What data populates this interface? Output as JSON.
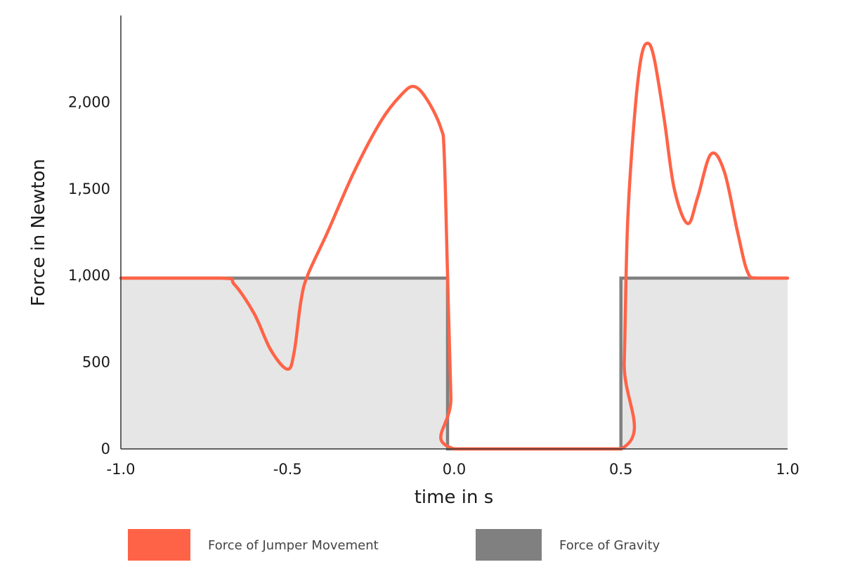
{
  "chart_data": {
    "type": "line",
    "xlabel": "time in s",
    "ylabel": "Force in Newton",
    "xlim": [
      -1.0,
      1.0
    ],
    "ylim": [
      0,
      2500
    ],
    "grid": false,
    "legend_position": "bottom",
    "x_ticks": [
      {
        "value": -1.0,
        "label": "-1.0"
      },
      {
        "value": -0.5,
        "label": "-0.5"
      },
      {
        "value": 0.0,
        "label": "0.0"
      },
      {
        "value": 0.5,
        "label": "0.5"
      },
      {
        "value": 1.0,
        "label": "1.0"
      }
    ],
    "y_ticks": [
      {
        "value": 0,
        "label": "0"
      },
      {
        "value": 500,
        "label": "500"
      },
      {
        "value": 1000,
        "label": "1,000"
      },
      {
        "value": 1500,
        "label": "1,500"
      },
      {
        "value": 2000,
        "label": "2,000"
      }
    ],
    "series": [
      {
        "name": "Force of Gravity",
        "color": "#808080",
        "fill": "#e6e6e6",
        "style": "area-step",
        "points": [
          [
            -1.0,
            985
          ],
          [
            -0.02,
            985
          ],
          [
            -0.02,
            0
          ],
          [
            0.5,
            0
          ],
          [
            0.5,
            985
          ],
          [
            1.0,
            985
          ]
        ]
      },
      {
        "name": "Force of Jumper Movement",
        "color": "#ff6347",
        "style": "line-smooth",
        "points": [
          [
            -1.0,
            985
          ],
          [
            -0.7,
            985
          ],
          [
            -0.66,
            950
          ],
          [
            -0.6,
            780
          ],
          [
            -0.55,
            570
          ],
          [
            -0.5,
            460
          ],
          [
            -0.48,
            560
          ],
          [
            -0.46,
            850
          ],
          [
            -0.44,
            1000
          ],
          [
            -0.38,
            1250
          ],
          [
            -0.3,
            1600
          ],
          [
            -0.22,
            1890
          ],
          [
            -0.16,
            2040
          ],
          [
            -0.12,
            2090
          ],
          [
            -0.08,
            2010
          ],
          [
            -0.04,
            1850
          ],
          [
            -0.03,
            1700
          ],
          [
            -0.02,
            1000
          ],
          [
            -0.01,
            300
          ],
          [
            0.0,
            0
          ],
          [
            0.5,
            0
          ],
          [
            0.51,
            500
          ],
          [
            0.52,
            1300
          ],
          [
            0.54,
            1900
          ],
          [
            0.56,
            2250
          ],
          [
            0.58,
            2340
          ],
          [
            0.6,
            2250
          ],
          [
            0.63,
            1900
          ],
          [
            0.66,
            1500
          ],
          [
            0.7,
            1300
          ],
          [
            0.73,
            1450
          ],
          [
            0.77,
            1700
          ],
          [
            0.81,
            1600
          ],
          [
            0.85,
            1250
          ],
          [
            0.88,
            1020
          ],
          [
            0.91,
            985
          ],
          [
            1.0,
            985
          ]
        ]
      }
    ]
  },
  "legend": {
    "items": [
      {
        "label": "Force of Jumper Movement",
        "color": "#ff6347"
      },
      {
        "label": "Force of Gravity",
        "color": "#808080"
      }
    ]
  }
}
